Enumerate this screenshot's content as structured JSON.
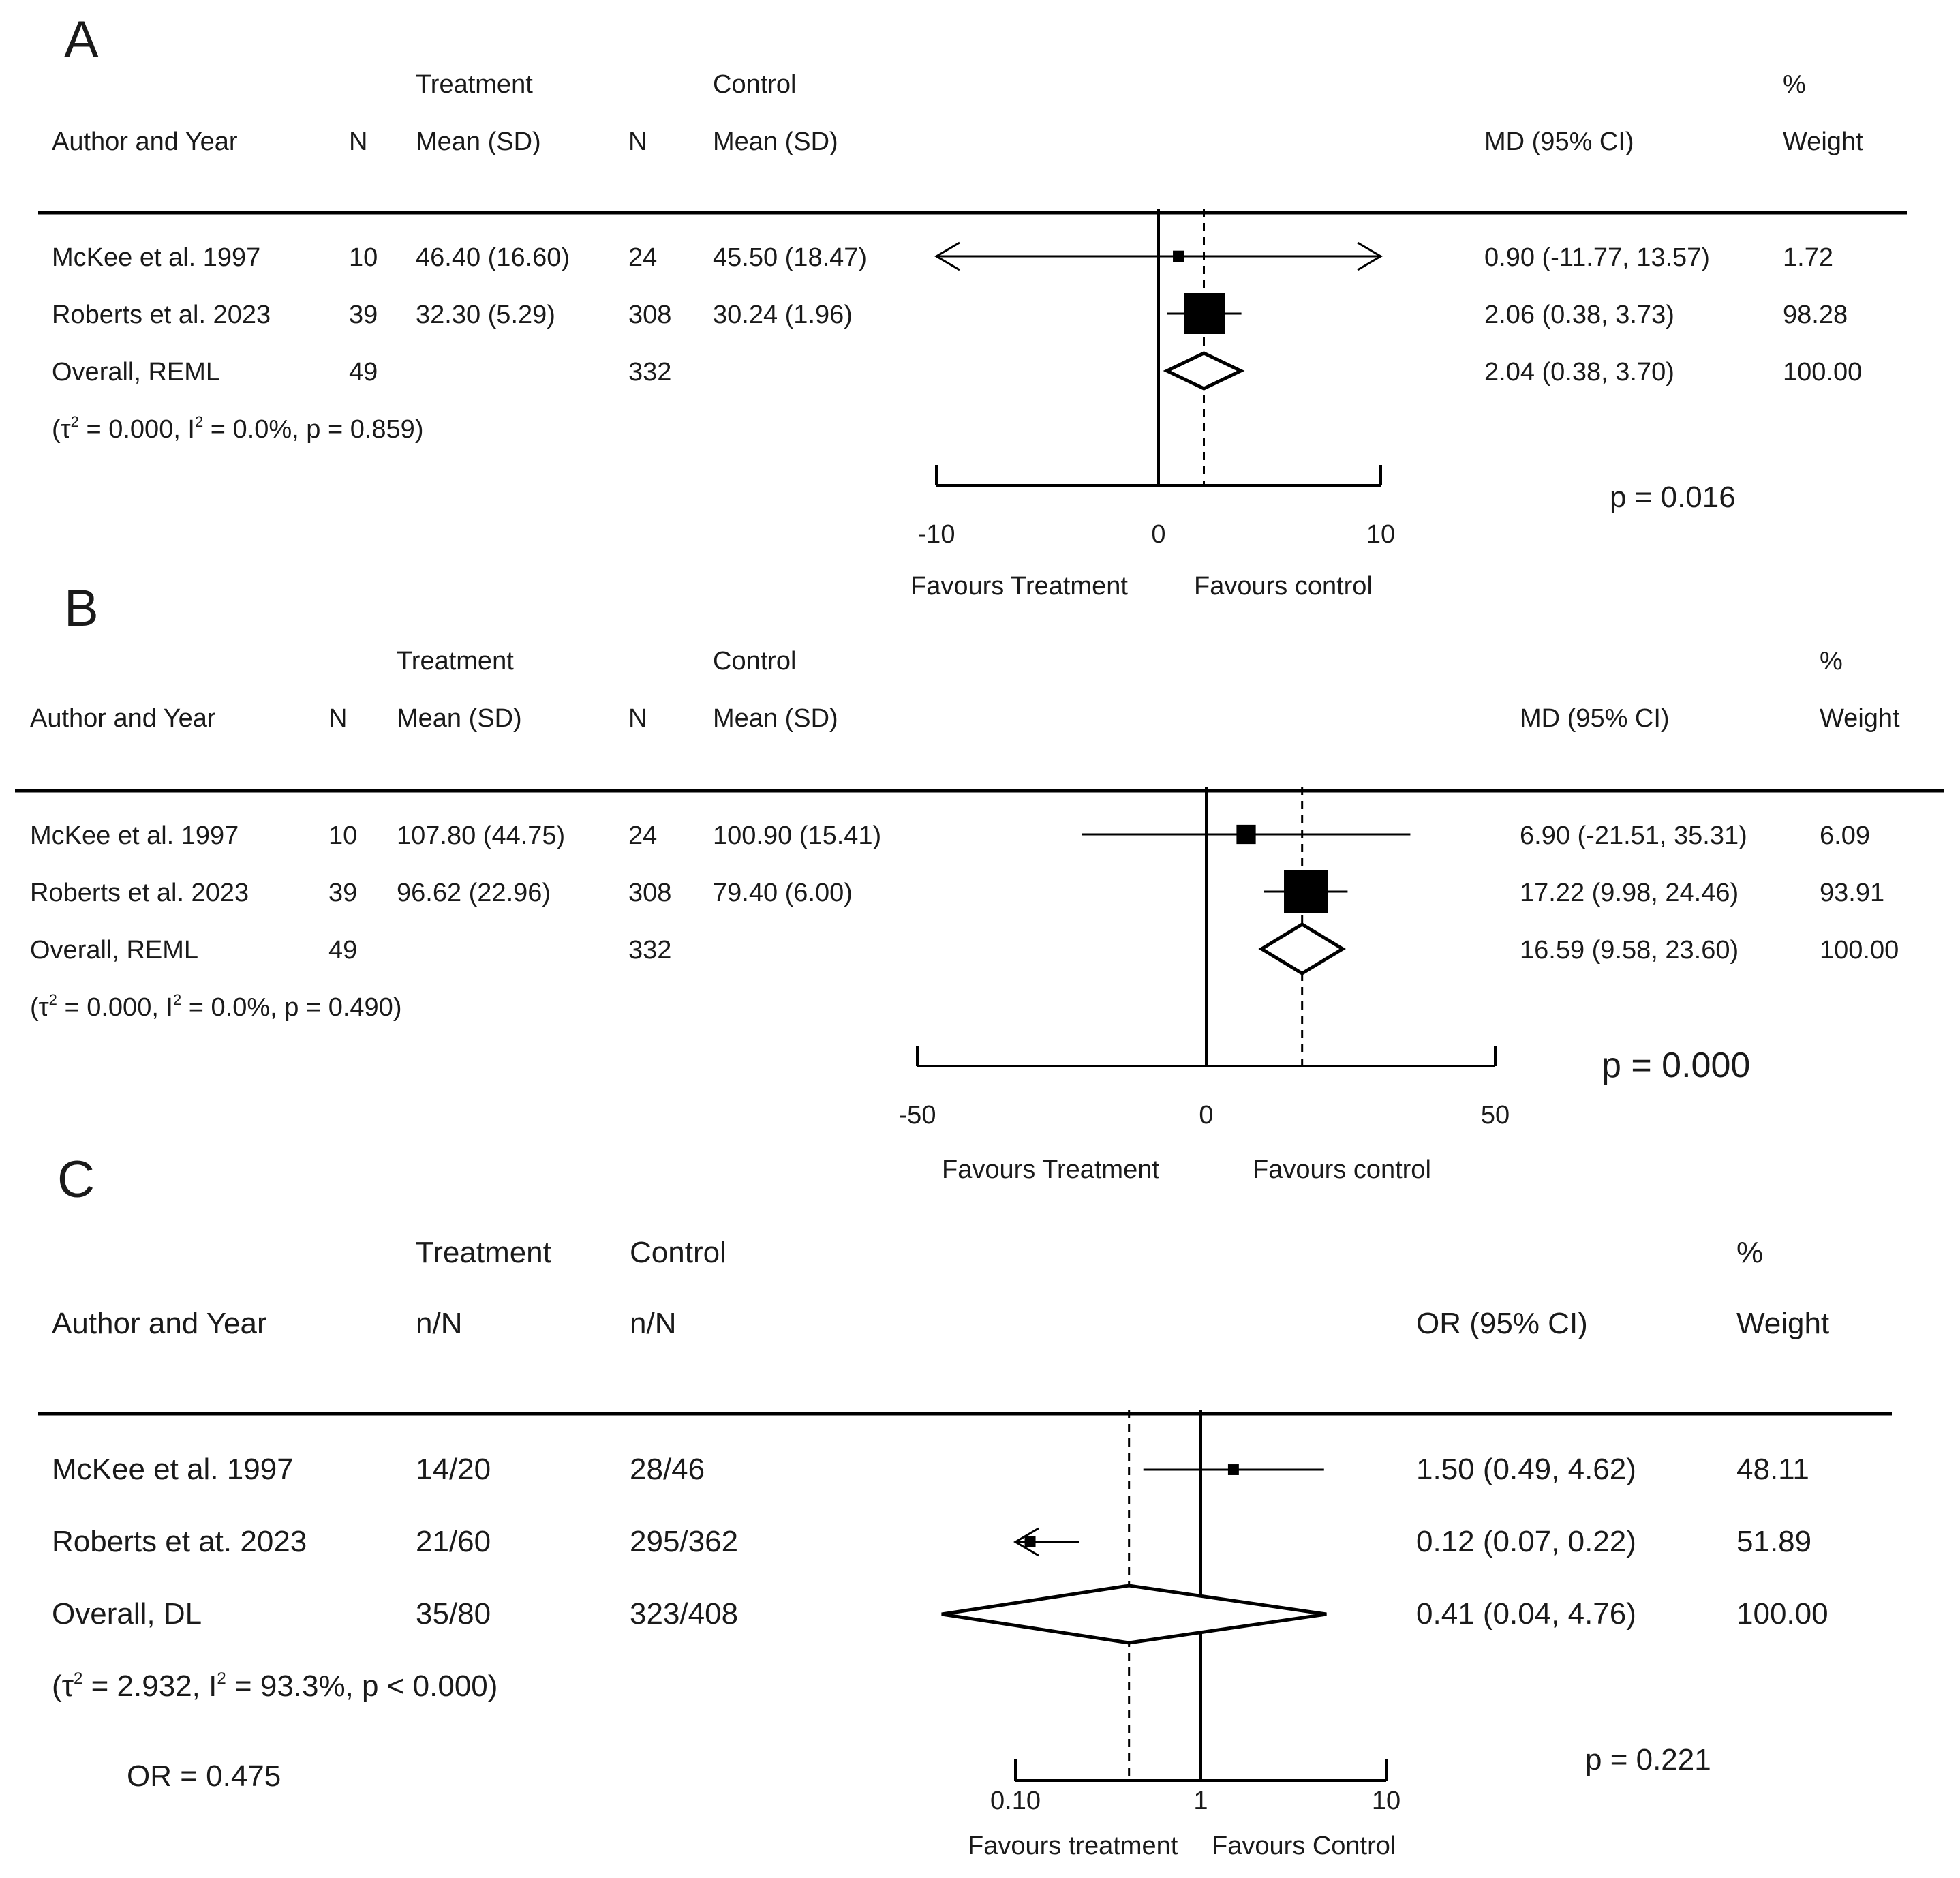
{
  "colors": {
    "ink": "#000000",
    "text": "#1a1a1a",
    "background": "#ffffff"
  },
  "chart_data": [
    {
      "type": "forest",
      "panel": "A",
      "measure": "MD",
      "scale": "linear",
      "xlim": [
        -10,
        10
      ],
      "null_value": 0,
      "ticks": [
        -10,
        0,
        10
      ],
      "tick_labels": [
        "-10",
        "0",
        "10"
      ],
      "favours_left": "Favours Treatment",
      "favours_right": "Favours control",
      "header_top": {
        "treatment": "Treatment",
        "control": "Control",
        "weight": "%"
      },
      "headers": [
        "Author and Year",
        "N",
        "Mean (SD)",
        "N",
        "Mean (SD)",
        "MD (95% CI)",
        "Weight"
      ],
      "rows": [
        {
          "label": "McKee et al. 1997",
          "n1": "10",
          "stat1": "46.40 (16.60)",
          "n2": "24",
          "stat2": "45.50 (18.47)",
          "est_text": "0.90 (-11.77, 13.57)",
          "weight_text": "1.72",
          "est": 0.9,
          "lo": -11.77,
          "hi": 13.57,
          "weight": 1.72
        },
        {
          "label": "Roberts et al. 2023",
          "n1": "39",
          "stat1": "32.30 (5.29)",
          "n2": "308",
          "stat2": "30.24 (1.96)",
          "est_text": "2.06 (0.38, 3.73)",
          "weight_text": "98.28",
          "est": 2.06,
          "lo": 0.38,
          "hi": 3.73,
          "weight": 98.28
        }
      ],
      "overall": {
        "label": "Overall, REML",
        "n1": "49",
        "n2": "332",
        "est_text": "2.04 (0.38, 3.70)",
        "weight_text": "100.00",
        "est": 2.04,
        "lo": 0.38,
        "hi": 3.7
      },
      "heterogeneity": {
        "pre": "(τ",
        "sup1": "2",
        "mid": " = 0.000, I",
        "sup2": "2",
        "post": " = 0.0%, p = 0.859)"
      },
      "p_value": "p = 0.016"
    },
    {
      "type": "forest",
      "panel": "B",
      "measure": "MD",
      "scale": "linear",
      "xlim": [
        -50,
        50
      ],
      "null_value": 0,
      "ticks": [
        -50,
        0,
        50
      ],
      "tick_labels": [
        "-50",
        "0",
        "50"
      ],
      "favours_left": "Favours Treatment",
      "favours_right": "Favours control",
      "header_top": {
        "treatment": "Treatment",
        "control": "Control",
        "weight": "%"
      },
      "headers": [
        "Author and Year",
        "N",
        "Mean (SD)",
        "N",
        "Mean (SD)",
        "MD (95% CI)",
        "Weight"
      ],
      "rows": [
        {
          "label": "McKee et al. 1997",
          "n1": "10",
          "stat1": "107.80 (44.75)",
          "n2": "24",
          "stat2": "100.90 (15.41)",
          "est_text": "6.90 (-21.51, 35.31)",
          "weight_text": "6.09",
          "est": 6.9,
          "lo": -21.51,
          "hi": 35.31,
          "weight": 6.09
        },
        {
          "label": "Roberts et al. 2023",
          "n1": "39",
          "stat1": "96.62 (22.96)",
          "n2": "308",
          "stat2": "79.40 (6.00)",
          "est_text": "17.22 (9.98, 24.46)",
          "weight_text": "93.91",
          "est": 17.22,
          "lo": 9.98,
          "hi": 24.46,
          "weight": 93.91
        }
      ],
      "overall": {
        "label": "Overall, REML",
        "n1": "49",
        "n2": "332",
        "est_text": "16.59 (9.58, 23.60)",
        "weight_text": "100.00",
        "est": 16.59,
        "lo": 9.58,
        "hi": 23.6
      },
      "heterogeneity": {
        "pre": "(τ",
        "sup1": "2",
        "mid": " = 0.000, I",
        "sup2": "2",
        "post": " = 0.0%, p = 0.490)"
      },
      "p_value": "p = 0.000"
    },
    {
      "type": "forest",
      "panel": "C",
      "measure": "OR",
      "scale": "log",
      "xlim": [
        0.1,
        10
      ],
      "null_value": 1,
      "ticks": [
        0.1,
        1,
        10
      ],
      "tick_labels": [
        "0.10",
        "1",
        "10"
      ],
      "favours_left": "Favours treatment",
      "favours_right": "Favours Control",
      "header_top": {
        "treatment": "Treatment",
        "control": "Control",
        "weight": "%"
      },
      "headers": [
        "Author and Year",
        "n/N",
        "n/N",
        "OR (95% CI)",
        "Weight"
      ],
      "rows": [
        {
          "label": "McKee et al. 1997",
          "stat1": "14/20",
          "stat2": "28/46",
          "est_text": "1.50 (0.49, 4.62)",
          "weight_text": "48.11",
          "est": 1.5,
          "lo": 0.49,
          "hi": 4.62,
          "weight": 48.11
        },
        {
          "label": "Roberts et at. 2023",
          "stat1": "21/60",
          "stat2": "295/362",
          "est_text": "0.12 (0.07, 0.22)",
          "weight_text": "51.89",
          "est": 0.12,
          "lo": 0.07,
          "hi": 0.22,
          "weight": 51.89
        }
      ],
      "overall": {
        "label": "Overall, DL",
        "stat1": "35/80",
        "stat2": "323/408",
        "est_text": "0.41 (0.04, 4.76)",
        "weight_text": "100.00",
        "est": 0.41,
        "lo": 0.04,
        "hi": 4.76
      },
      "heterogeneity": {
        "pre": "(τ",
        "sup1": "2",
        "mid": " = 2.932, I",
        "sup2": "2",
        "post": " = 93.3%, p < 0.000)"
      },
      "p_value": "p = 0.221",
      "extra_note": "OR = 0.475"
    }
  ]
}
